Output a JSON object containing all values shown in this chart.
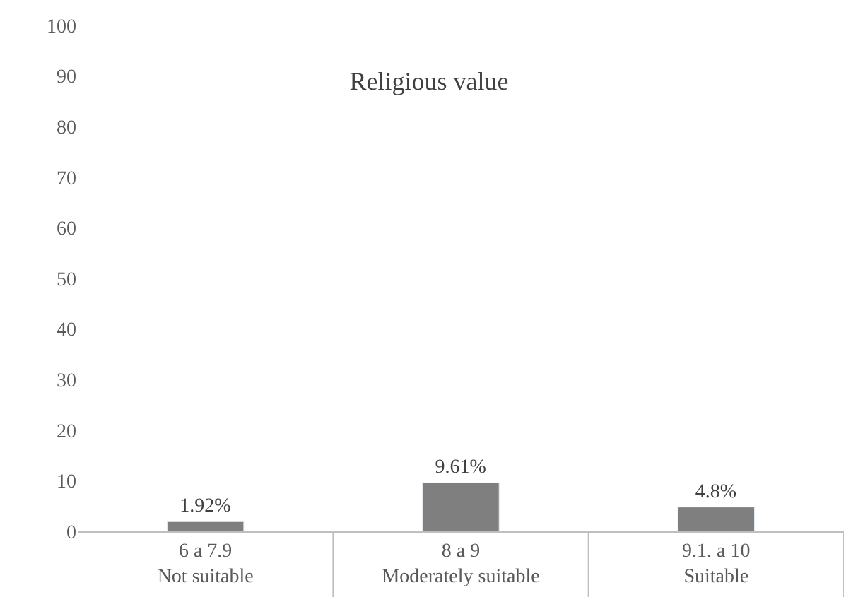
{
  "chart_data": {
    "type": "bar",
    "title": "Religious value",
    "categories": [
      "6 a 7.9\nNot suitable",
      "8 a 9\nModerately suitable",
      "9.1. a 10\nSuitable"
    ],
    "values": [
      1.92,
      9.61,
      4.8
    ],
    "value_labels": [
      "1.92%",
      "9.61%",
      "4.8%"
    ],
    "color": "#7f7f7f",
    "ylim": [
      0,
      100
    ],
    "yticks": [
      0,
      10,
      20,
      30,
      40,
      50,
      60,
      70,
      80,
      90,
      100
    ],
    "grid": false
  }
}
